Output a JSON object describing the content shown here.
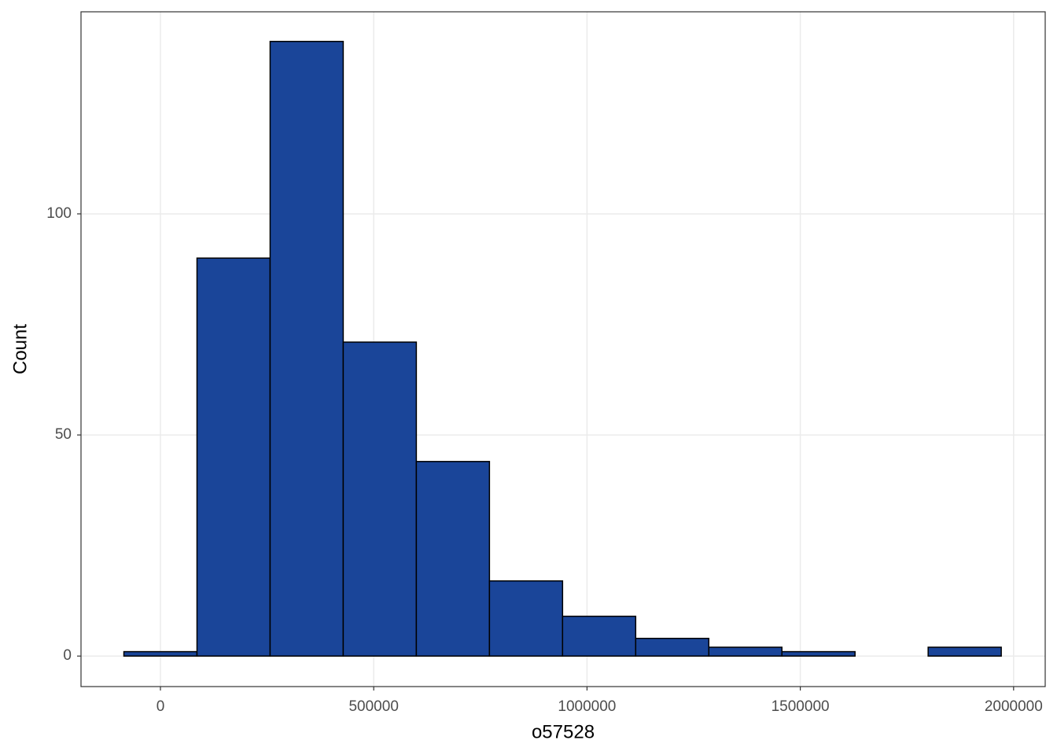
{
  "chart_data": {
    "type": "histogram",
    "xlabel": "o57528",
    "ylabel": "Count",
    "bins": [
      -85700,
      85700,
      257100,
      428500,
      599900,
      771300,
      942700,
      1114100,
      1285500,
      1456900,
      1628300,
      1799700,
      1971100
    ],
    "values": [
      1,
      90,
      139,
      71,
      44,
      17,
      9,
      4,
      2,
      1,
      0,
      2
    ],
    "color": "#1a4599",
    "xlim": [
      -186200,
      2074100
    ],
    "ylim": [
      -6.9,
      145.7
    ],
    "xticks": [
      0,
      500000,
      1000000,
      1500000,
      2000000
    ],
    "yticks": [
      0,
      50,
      100
    ],
    "grid": true
  }
}
